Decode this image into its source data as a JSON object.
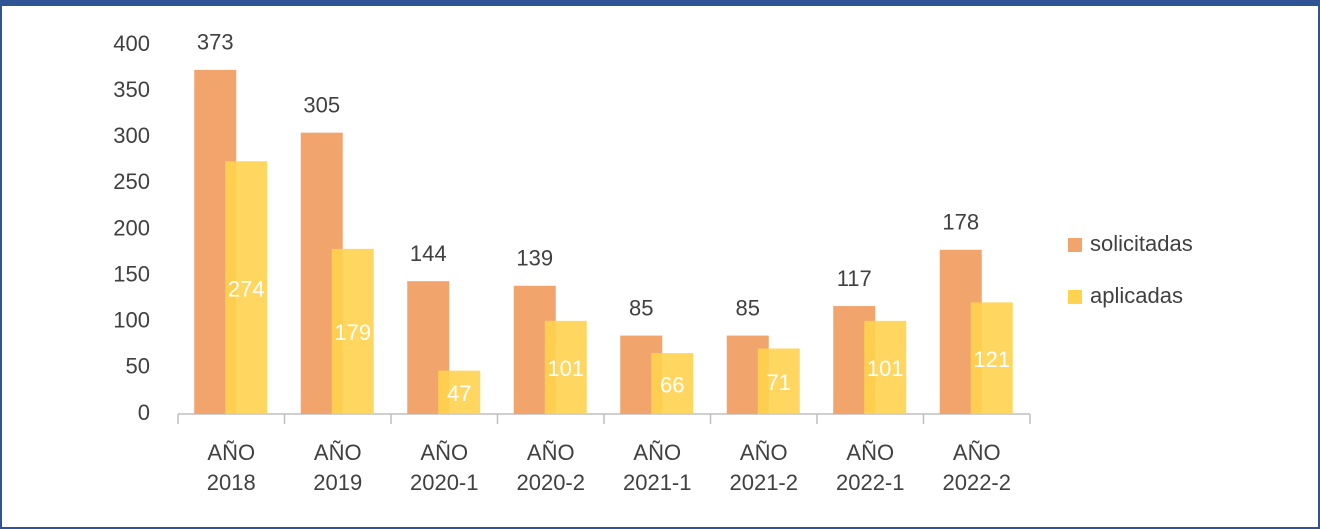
{
  "chart_data": {
    "type": "bar",
    "categories": [
      "AÑO 2018",
      "AÑO 2019",
      "AÑO 2020-1",
      "AÑO 2020-2",
      "AÑO 2021-1",
      "AÑO 2021-2",
      "AÑO 2022-1",
      "AÑO 2022-2"
    ],
    "series": [
      {
        "name": "solicitadas",
        "color": "#f1a46c",
        "values": [
          373,
          305,
          144,
          139,
          85,
          85,
          117,
          178
        ]
      },
      {
        "name": "aplicadas",
        "color": "#ffd34f",
        "values": [
          274,
          179,
          47,
          101,
          66,
          71,
          101,
          121
        ]
      }
    ],
    "ylim": [
      0,
      400
    ],
    "yticks": [
      0,
      50,
      100,
      150,
      200,
      250,
      300,
      350,
      400
    ],
    "legend": "right"
  }
}
